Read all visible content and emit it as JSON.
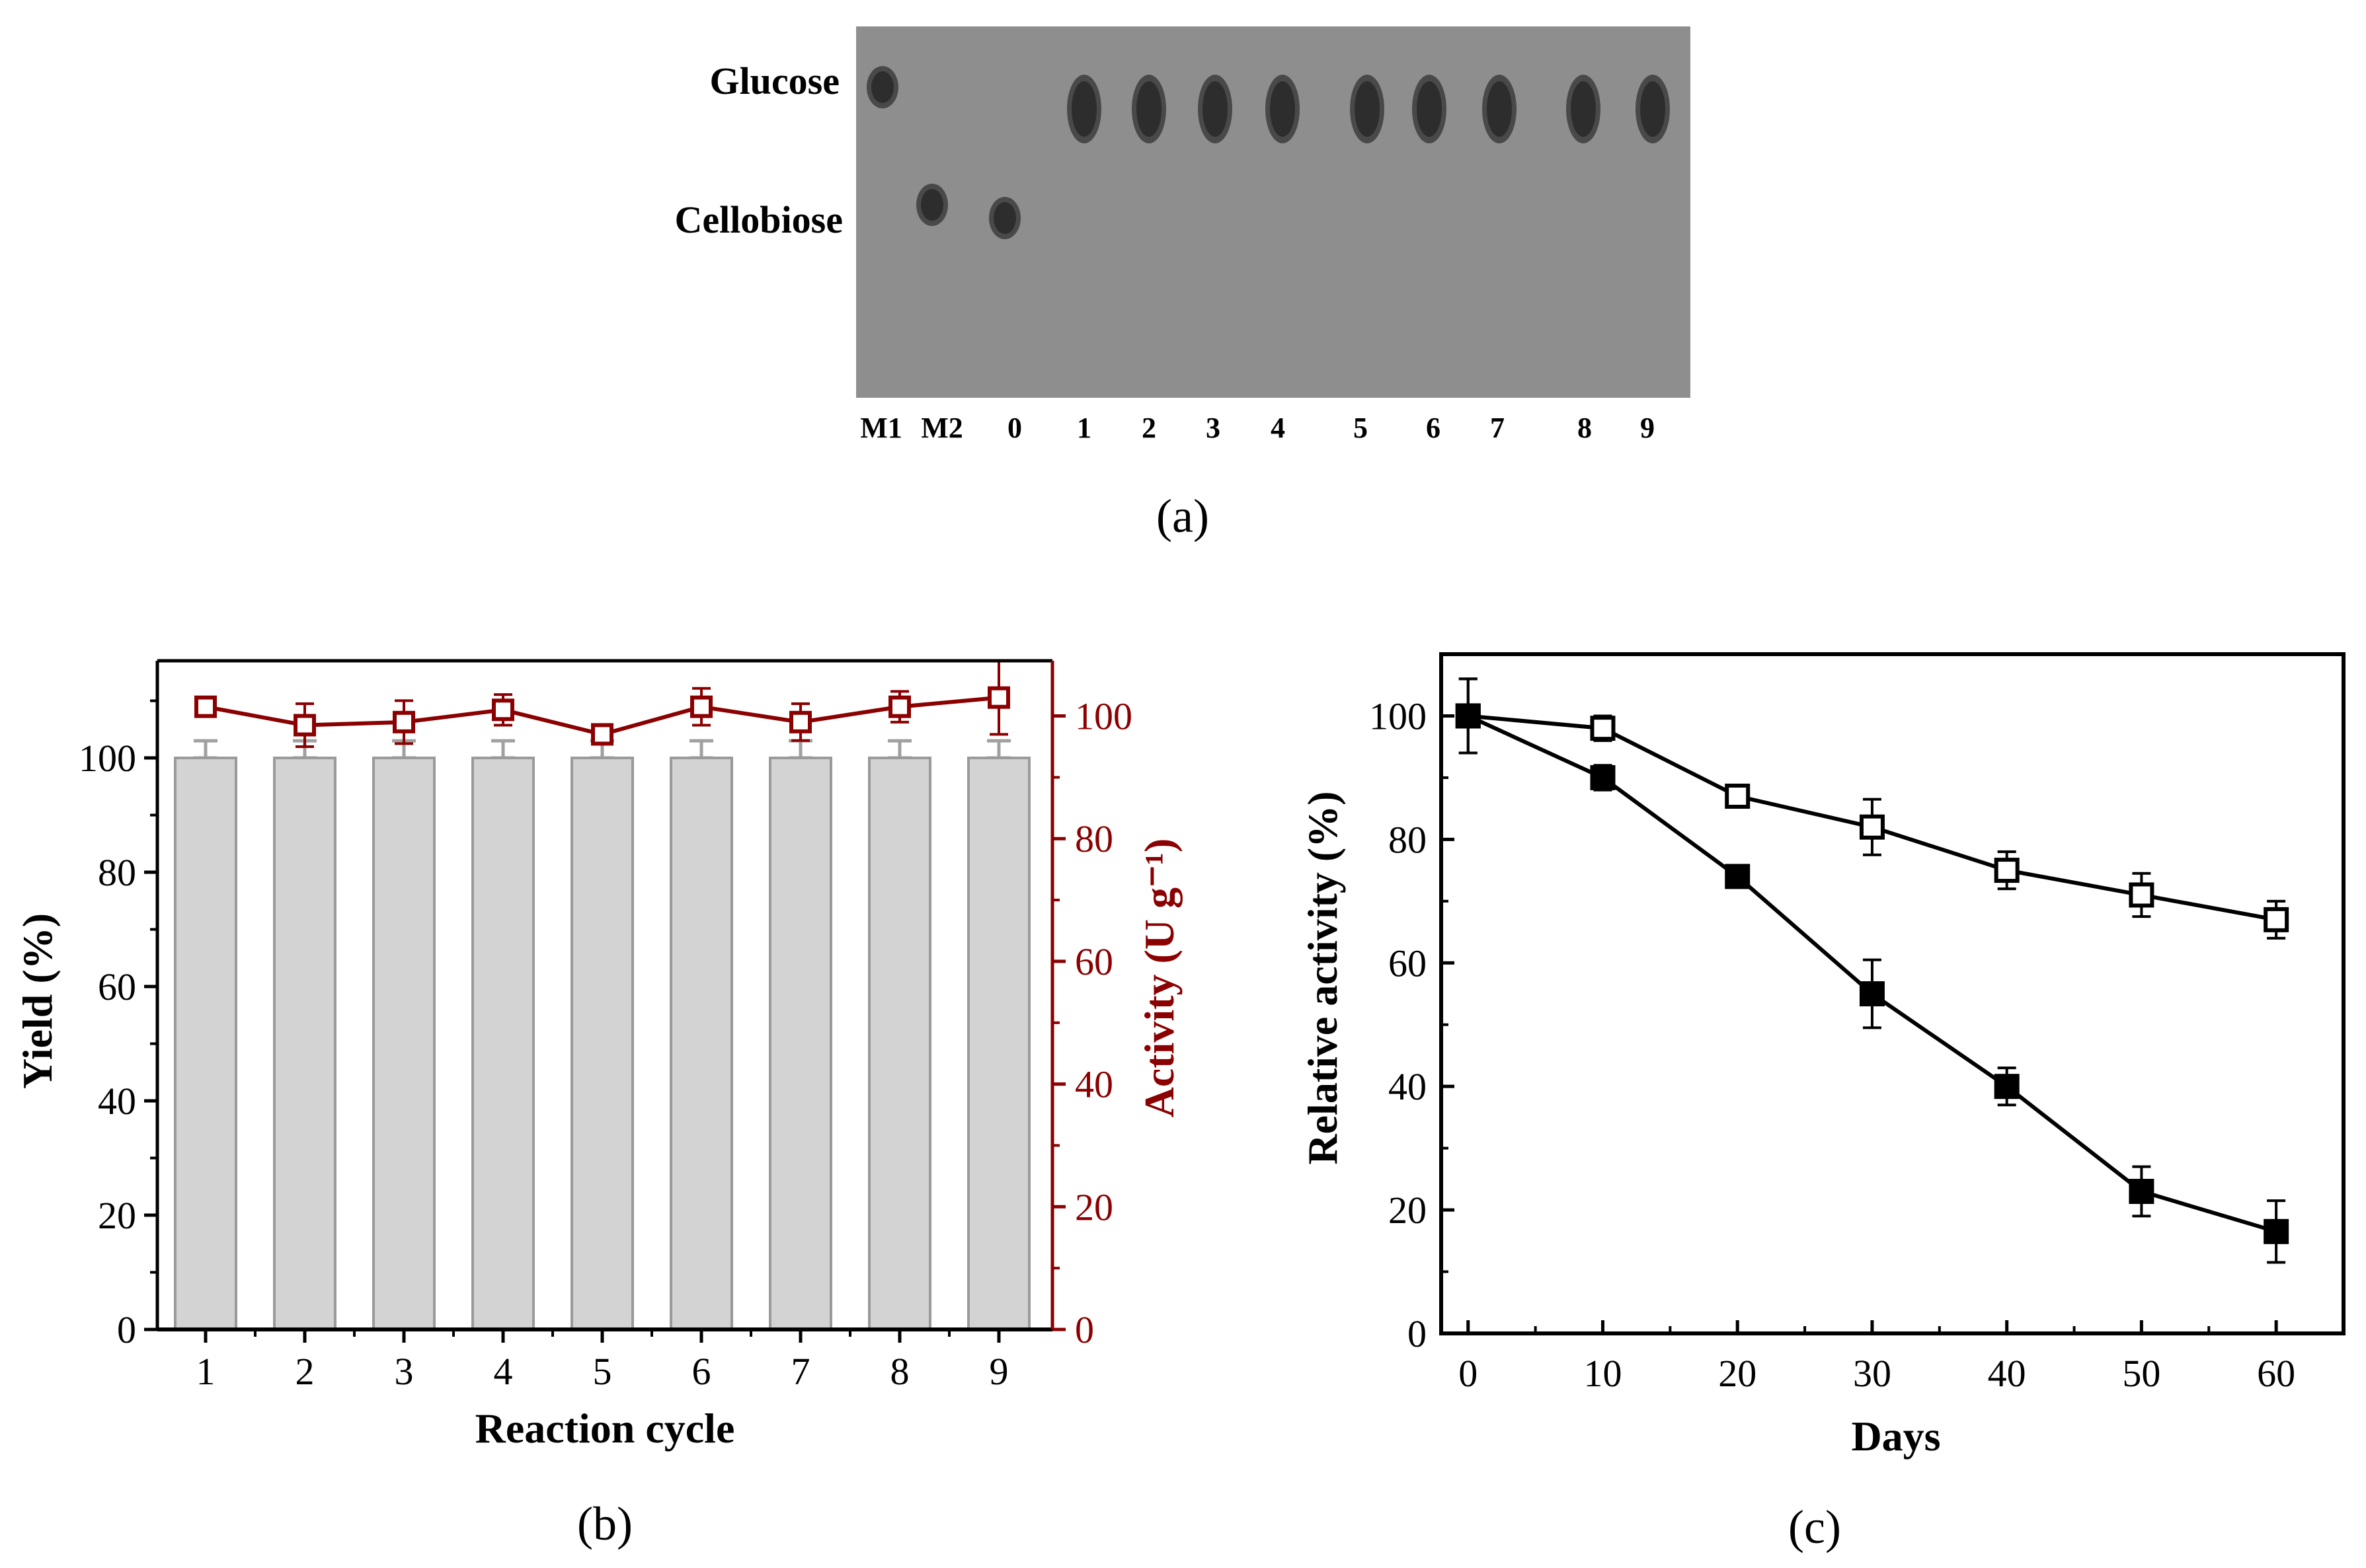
{
  "figure_labels": {
    "a": "(a)",
    "b": "(b)",
    "c": "(c)"
  },
  "tlc": {
    "compound_labels": [
      "Glucose",
      "Cellobiose"
    ],
    "lanes": [
      "M1",
      "M2",
      "0",
      "1",
      "2",
      "3",
      "4",
      "5",
      "6",
      "7",
      "8",
      "9"
    ],
    "lane_content": [
      "glucose",
      "cellobiose",
      "cellobiose",
      "glucose",
      "glucose",
      "glucose",
      "glucose",
      "glucose",
      "glucose",
      "glucose",
      "glucose",
      "glucose"
    ]
  },
  "chart_data": [
    {
      "id": "b",
      "type": "bar",
      "xlabel": "Reaction cycle",
      "ylabel": "Yield (%)",
      "y2label": "Activity (U g⁻¹)",
      "categories": [
        "1",
        "2",
        "3",
        "4",
        "5",
        "6",
        "7",
        "8",
        "9"
      ],
      "ylim": [
        0,
        117
      ],
      "yticks": [
        "0",
        "20",
        "40",
        "60",
        "80",
        "100"
      ],
      "y2lim": [
        0,
        109
      ],
      "y2ticks": [
        "0",
        "20",
        "40",
        "60",
        "80",
        "100"
      ],
      "series": [
        {
          "name": "Yield",
          "axis": "left",
          "kind": "bar",
          "color": "#d3d3d3",
          "values": [
            100,
            100,
            100,
            100,
            100,
            100,
            100,
            100,
            100
          ],
          "errors": [
            3,
            3,
            3,
            3,
            3,
            3,
            3,
            3,
            3
          ]
        },
        {
          "name": "Activity",
          "axis": "right",
          "kind": "line",
          "marker": "open-square",
          "color": "#8b0000",
          "values": [
            101.5,
            98.5,
            99,
            101,
            97,
            101.5,
            99,
            101.5,
            103
          ],
          "errors": [
            1.5,
            3.5,
            3.5,
            2.5,
            1.5,
            3,
            3,
            2.5,
            6
          ]
        }
      ]
    },
    {
      "id": "c",
      "type": "line",
      "xlabel": "Days",
      "ylabel": "Relative activity (%)",
      "x": [
        0,
        10,
        20,
        30,
        40,
        50,
        60
      ],
      "xlim": [
        -2,
        65
      ],
      "ylim": [
        0,
        110
      ],
      "xticks": [
        "0",
        "10",
        "20",
        "30",
        "40",
        "50",
        "60"
      ],
      "yticks": [
        "0",
        "20",
        "40",
        "60",
        "80",
        "100"
      ],
      "series": [
        {
          "name": "open squares",
          "marker": "open-square",
          "color": "#000000",
          "values": [
            100,
            98,
            87,
            82,
            75,
            71,
            67
          ],
          "errors": [
            6,
            2,
            1.5,
            4.5,
            3,
            3.5,
            3
          ]
        },
        {
          "name": "filled squares",
          "marker": "filled-square",
          "color": "#000000",
          "values": [
            100,
            90,
            74,
            55,
            40,
            23,
            16.5
          ],
          "errors": [
            6,
            2,
            1.5,
            5.5,
            3,
            4,
            5
          ]
        }
      ]
    }
  ]
}
